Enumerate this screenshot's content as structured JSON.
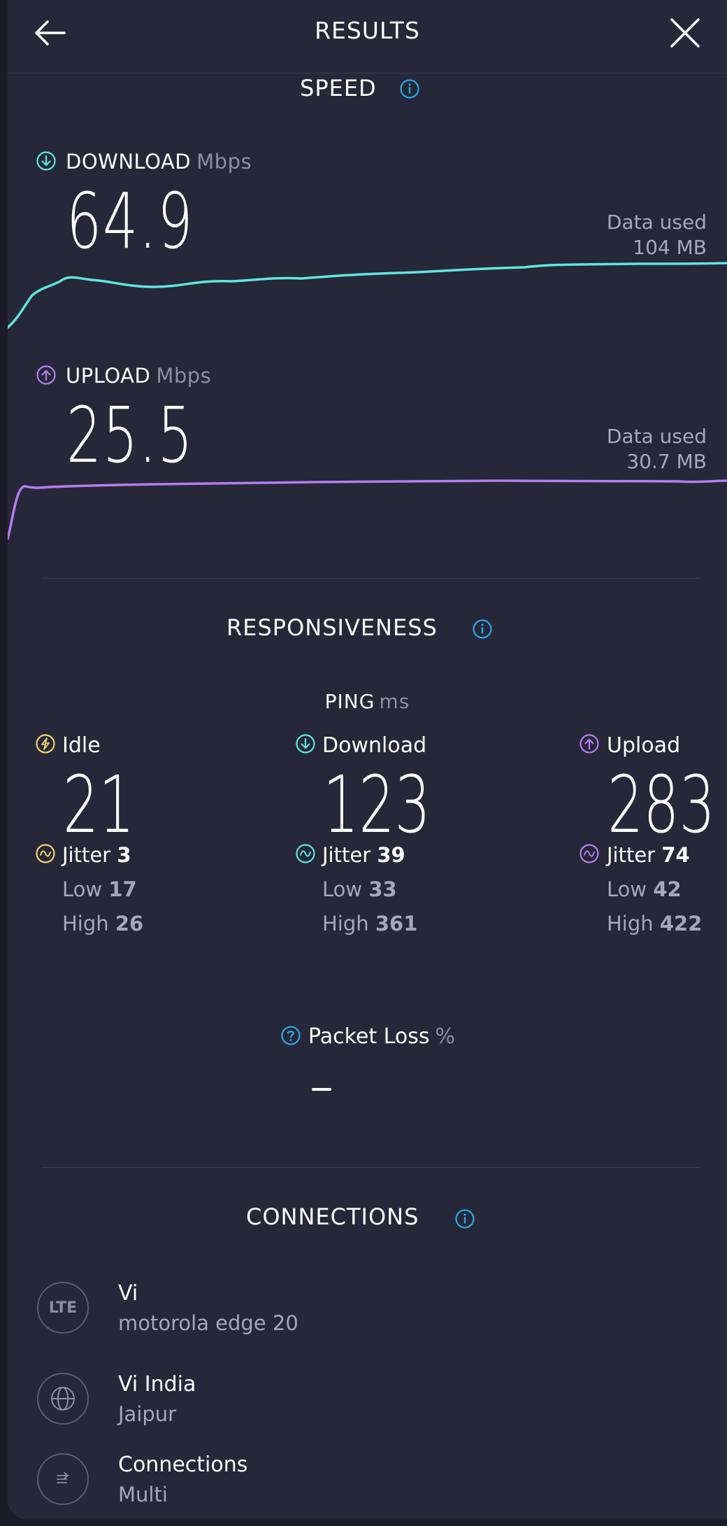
{
  "header": {
    "title": "RESULTS",
    "back_icon": "arrow-left-icon",
    "close_icon": "close-icon"
  },
  "speed": {
    "heading": "SPEED",
    "download": {
      "label": "DOWNLOAD",
      "unit": "Mbps",
      "value": "64.9",
      "data_used_label": "Data used",
      "data_used_value": "104 MB",
      "color": "#5ee6e0"
    },
    "upload": {
      "label": "UPLOAD",
      "unit": "Mbps",
      "value": "25.5",
      "data_used_label": "Data used",
      "data_used_value": "30.7 MB",
      "color": "#b77cf2"
    }
  },
  "responsiveness": {
    "heading": "RESPONSIVENESS",
    "ping_label": "PING",
    "ping_unit": "ms",
    "columns": [
      {
        "label": "Idle",
        "value": "21",
        "jitter_label": "Jitter",
        "jitter": "3",
        "low_label": "Low",
        "low": "17",
        "high_label": "High",
        "high": "26",
        "color": "#f2d46b"
      },
      {
        "label": "Download",
        "value": "123",
        "jitter_label": "Jitter",
        "jitter": "39",
        "low_label": "Low",
        "low": "33",
        "high_label": "High",
        "high": "361",
        "color": "#5ee6e0"
      },
      {
        "label": "Upload",
        "value": "283",
        "jitter_label": "Jitter",
        "jitter": "74",
        "low_label": "Low",
        "low": "42",
        "high_label": "High",
        "high": "422",
        "color": "#b77cf2"
      }
    ],
    "packet_loss_label": "Packet Loss",
    "packet_loss_unit": "%",
    "packet_loss_value": "–"
  },
  "connections": {
    "heading": "CONNECTIONS",
    "items": [
      {
        "icon": "LTE",
        "title": "Vi",
        "subtitle": "motorola edge 20"
      },
      {
        "icon": "globe-icon",
        "title": "Vi India",
        "subtitle": "Jaipur"
      },
      {
        "icon": "multi-connection-icon",
        "title": "Connections",
        "subtitle": "Multi"
      }
    ]
  },
  "colors": {
    "accent_blue": "#2ba7e8",
    "background": "#262839"
  }
}
